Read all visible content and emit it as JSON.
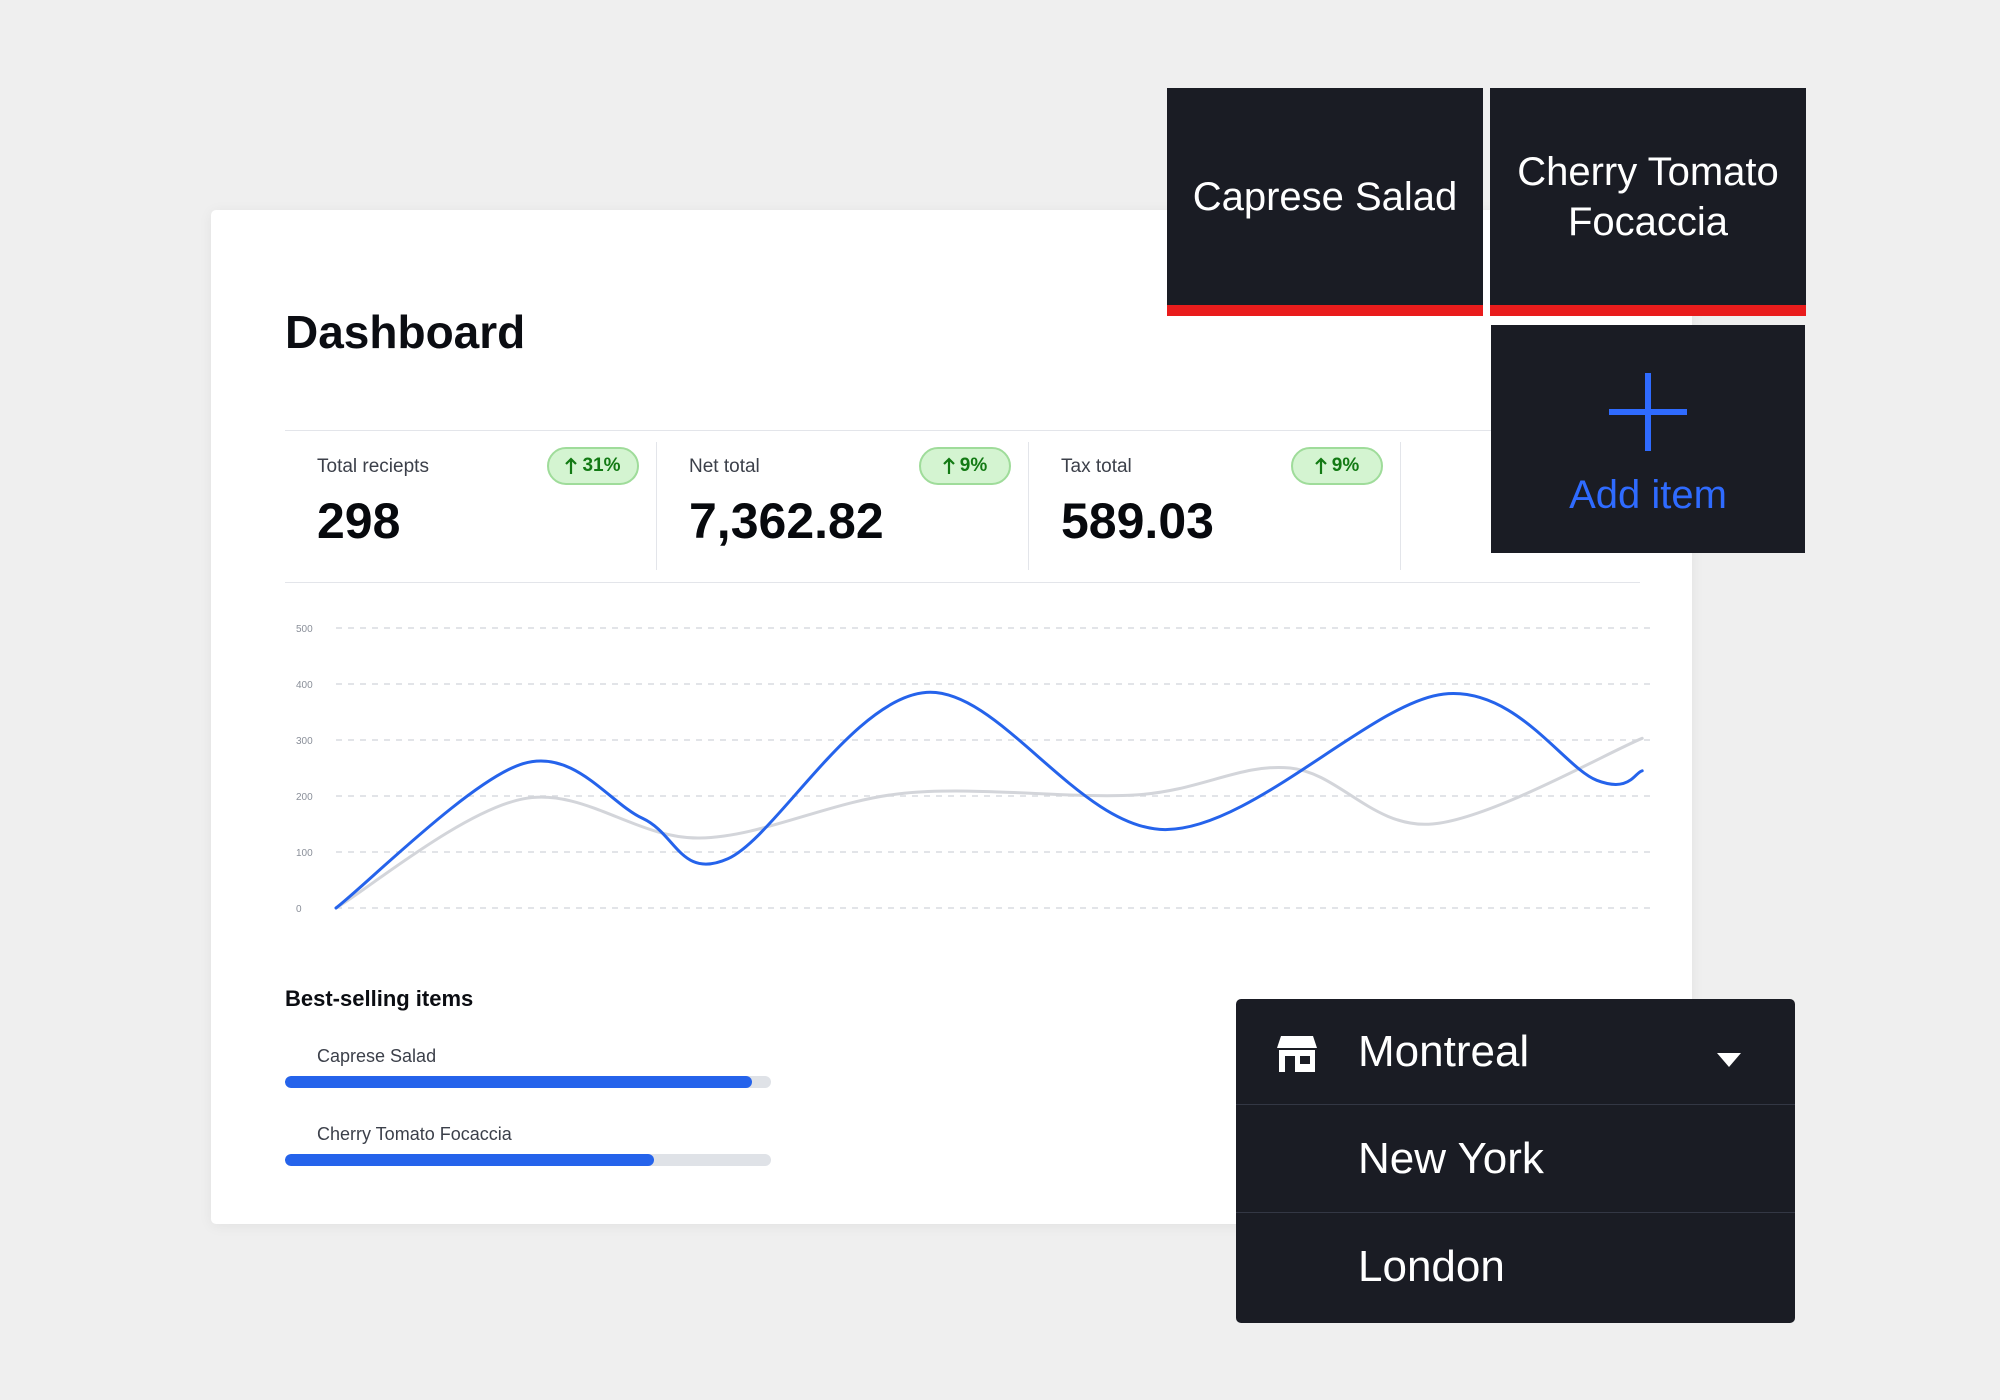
{
  "dashboard": {
    "title": "Dashboard",
    "stats": [
      {
        "label": "Total reciepts",
        "value": "298",
        "badge": "31%"
      },
      {
        "label": "Net total",
        "value": "7,362.82",
        "badge": "9%"
      },
      {
        "label": "Tax total",
        "value": "589.03",
        "badge": "9%"
      }
    ],
    "best_selling": {
      "title": "Best-selling items",
      "items": [
        {
          "label": "Caprese Salad",
          "share": 0.96
        },
        {
          "label": "Cherry Tomato Focaccia",
          "share": 0.76
        }
      ]
    }
  },
  "chart_data": {
    "type": "line",
    "y_ticks": [
      "500",
      "400",
      "300",
      "200",
      "100",
      "0"
    ],
    "ylim": [
      0,
      500
    ],
    "xlim": [
      0,
      24
    ],
    "grid": true,
    "series": [
      {
        "color": "#2563eb",
        "x": [
          0,
          3.3,
          5.4,
          6.9,
          10.4,
          14.6,
          19.5,
          22.2,
          23
        ],
        "values": [
          0,
          258,
          160,
          88,
          385,
          140,
          382,
          228,
          245
        ]
      },
      {
        "color": "#d3d5da",
        "x": [
          0,
          3.3,
          6.4,
          10,
          14.1,
          16.8,
          19.3,
          23
        ],
        "values": [
          0,
          195,
          125,
          205,
          202,
          250,
          150,
          303
        ]
      }
    ]
  },
  "menu_items": [
    {
      "label": "Caprese Salad"
    },
    {
      "label": "Cherry Tomato Focaccia"
    }
  ],
  "add_item": {
    "label": "Add item"
  },
  "location_dropdown": {
    "selected": "Montreal",
    "options": [
      "New York",
      "London"
    ]
  },
  "colors": {
    "accent": "#2563eb",
    "badge_bg": "#d4f4d1",
    "badge_text": "#137a14",
    "tile_bg": "#1a1c24",
    "tile_border": "#e91c1c"
  }
}
